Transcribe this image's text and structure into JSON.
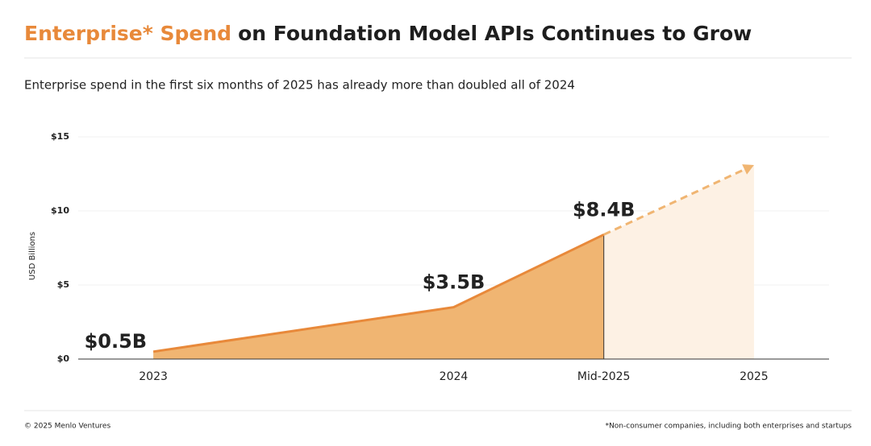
{
  "chart_data": {
    "type": "area",
    "title_highlight": "Enterprise* Spend",
    "title": "on Foundation Model APIs Continues to Grow",
    "subtitle": "Enterprise spend in the first six months of 2025 has already more than doubled all of 2024",
    "y_label": "USD Billions",
    "x": [
      2023,
      2024,
      2024.5,
      2025
    ],
    "values": [
      0.5,
      3.5,
      8.4,
      null
    ],
    "value_labels": [
      "$0.5B",
      "$3.5B",
      "$8.4B",
      null
    ],
    "projection": [
      null,
      null,
      8.4,
      13.1
    ],
    "color": "#e8893a",
    "fill": "#f0b572",
    "projection_fill": "#fdf1e4",
    "xlim": [
      2022.75,
      2025.25
    ],
    "xticks": [
      2023,
      2024,
      {
        "value": 2024.5,
        "label": "Mid-2025"
      },
      2025
    ],
    "ylim": [
      0,
      15
    ],
    "yticks": [
      {
        "value": 0,
        "label": "$0"
      },
      {
        "value": 5,
        "label": "$5"
      },
      {
        "value": 10,
        "label": "$10"
      },
      {
        "value": 15,
        "label": "$15"
      }
    ],
    "grid": true,
    "source": "© 2025 Menlo Ventures",
    "footnote": "*Non-consumer companies, including both enterprises and startups"
  }
}
